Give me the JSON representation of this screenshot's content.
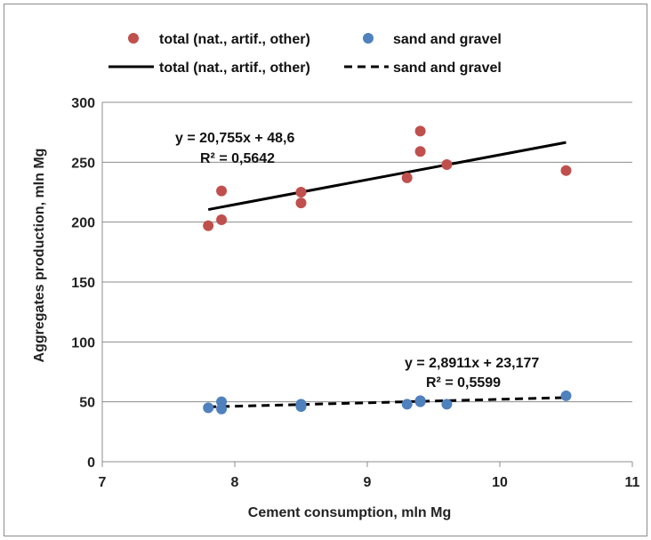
{
  "chart_data": {
    "type": "scatter",
    "xlabel": "Cement consumption,  mln Mg",
    "ylabel": "Aggregates production,  mln Mg",
    "xlim": [
      7,
      11
    ],
    "ylim": [
      0,
      300
    ],
    "xticks": [
      "7",
      "8",
      "9",
      "10",
      "11"
    ],
    "yticks": [
      "0",
      "50",
      "100",
      "150",
      "200",
      "250",
      "300"
    ],
    "grid": "horizontal",
    "legend_position": "top",
    "series": [
      {
        "name": "total (nat., artif., other)",
        "color": "#c0504d",
        "points": [
          {
            "x": 7.8,
            "y": 197
          },
          {
            "x": 7.9,
            "y": 202
          },
          {
            "x": 7.9,
            "y": 226
          },
          {
            "x": 8.5,
            "y": 216
          },
          {
            "x": 8.5,
            "y": 225
          },
          {
            "x": 9.3,
            "y": 237
          },
          {
            "x": 9.4,
            "y": 259
          },
          {
            "x": 9.4,
            "y": 276
          },
          {
            "x": 9.6,
            "y": 248
          },
          {
            "x": 10.5,
            "y": 243
          }
        ],
        "trendline": {
          "name": "total (nat., artif., other)",
          "style": "solid",
          "slope": 20.755,
          "intercept": 48.6,
          "x_range": [
            7.8,
            10.5
          ],
          "equation": "y = 20,755x + 48,6",
          "r2": "R² = 0,5642"
        }
      },
      {
        "name": "sand and gravel",
        "color": "#4f81bd",
        "points": [
          {
            "x": 7.8,
            "y": 45
          },
          {
            "x": 7.9,
            "y": 44
          },
          {
            "x": 7.9,
            "y": 50
          },
          {
            "x": 8.5,
            "y": 46
          },
          {
            "x": 8.5,
            "y": 48
          },
          {
            "x": 9.3,
            "y": 48
          },
          {
            "x": 9.4,
            "y": 50
          },
          {
            "x": 9.4,
            "y": 51
          },
          {
            "x": 9.6,
            "y": 48
          },
          {
            "x": 10.5,
            "y": 55
          }
        ],
        "trendline": {
          "name": "sand and gravel",
          "style": "dashed",
          "slope": 2.8911,
          "intercept": 23.177,
          "x_range": [
            7.8,
            10.5
          ],
          "equation": "y = 2,8911x + 23,177",
          "r2": "R² = 0,5599"
        }
      }
    ]
  }
}
